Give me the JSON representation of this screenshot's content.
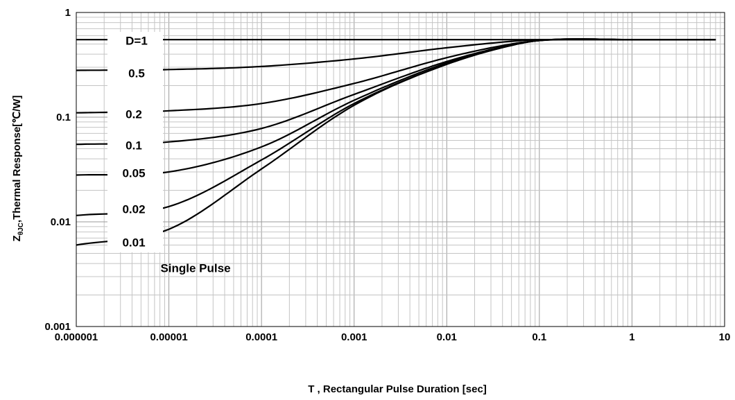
{
  "chart_data": {
    "type": "line",
    "xscale": "log",
    "yscale": "log",
    "xlim": [
      1e-06,
      10
    ],
    "ylim": [
      0.001,
      1
    ],
    "grid": true,
    "xlabel": "T , Rectangular Pulse Duration [sec]",
    "ylabel": "ZθJC,Thermal Response[℃/W]",
    "ylabel_main": "Z",
    "ylabel_sub": "θJC",
    "ylabel_rest": ",Thermal Response[℃/W]",
    "x_ticks": [
      "0.000001",
      "0.00001",
      "0.0001",
      "0.001",
      "0.01",
      "0.1",
      "1",
      "10"
    ],
    "y_ticks": [
      "0.001",
      "0.01",
      "0.1",
      "1"
    ],
    "series": [
      {
        "name": "D=1",
        "x": [
          1e-06,
          1e-05,
          0.0001,
          0.001,
          0.01,
          0.1,
          1,
          8
        ],
        "y": [
          0.55,
          0.55,
          0.55,
          0.55,
          0.55,
          0.55,
          0.55,
          0.55
        ]
      },
      {
        "name": "0.5",
        "x": [
          1e-06,
          1e-05,
          0.0001,
          0.001,
          0.01,
          0.05,
          0.1,
          1,
          8
        ],
        "y": [
          0.28,
          0.285,
          0.305,
          0.36,
          0.46,
          0.53,
          0.55,
          0.55,
          0.55
        ]
      },
      {
        "name": "0.2",
        "x": [
          1e-06,
          1e-05,
          0.0001,
          0.001,
          0.01,
          0.05,
          0.1,
          1,
          8
        ],
        "y": [
          0.11,
          0.115,
          0.135,
          0.21,
          0.37,
          0.5,
          0.54,
          0.55,
          0.55
        ]
      },
      {
        "name": "0.1",
        "x": [
          1e-06,
          1e-05,
          0.0001,
          0.001,
          0.01,
          0.05,
          0.1,
          1,
          8
        ],
        "y": [
          0.055,
          0.058,
          0.078,
          0.165,
          0.34,
          0.49,
          0.54,
          0.55,
          0.55
        ]
      },
      {
        "name": "0.05",
        "x": [
          1e-06,
          1e-05,
          0.0001,
          0.001,
          0.01,
          0.05,
          0.1,
          1,
          8
        ],
        "y": [
          0.028,
          0.03,
          0.052,
          0.145,
          0.33,
          0.49,
          0.54,
          0.55,
          0.55
        ]
      },
      {
        "name": "0.02",
        "x": [
          1e-06,
          1e-05,
          0.0001,
          0.001,
          0.01,
          0.05,
          0.1,
          1,
          8
        ],
        "y": [
          0.0115,
          0.014,
          0.039,
          0.135,
          0.32,
          0.485,
          0.54,
          0.55,
          0.55
        ]
      },
      {
        "name": "0.01",
        "x": [
          1e-06,
          1e-05,
          0.0001,
          0.001,
          0.01,
          0.05,
          0.1,
          1,
          8
        ],
        "y": [
          0.006,
          0.0085,
          0.032,
          0.13,
          0.32,
          0.485,
          0.54,
          0.55,
          0.55
        ]
      }
    ],
    "annotations": [
      "D=1",
      "0.5",
      "0.2",
      "0.1",
      "0.05",
      "0.02",
      "0.01",
      "Single Pulse"
    ]
  }
}
